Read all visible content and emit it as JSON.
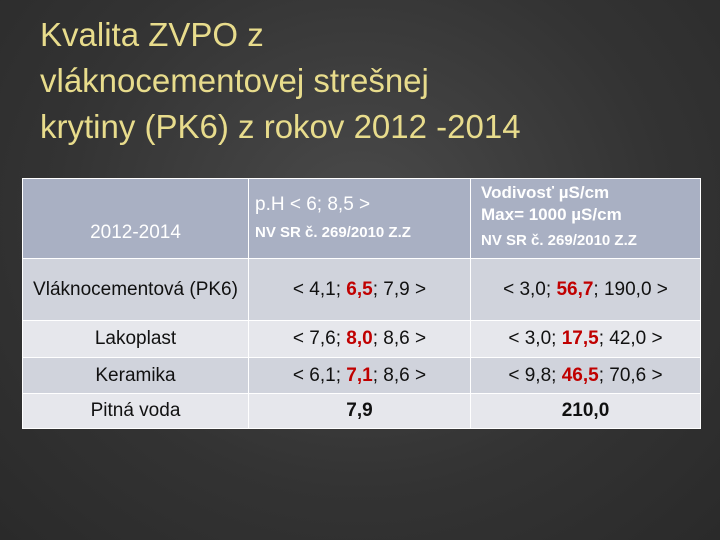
{
  "header": {
    "title": [
      "Kvalita ZVPO z",
      "vláknocementovej strešnej",
      "krytiny (PK6) z rokov 2012 -2014"
    ]
  },
  "table": {
    "header": {
      "period": "2012-2014",
      "ph": {
        "label": "p.H  < 6; 8,5 >",
        "norm": "NV SR č. 269/2010 Z.Z"
      },
      "conductivity": {
        "label": "Vodivosť µS/cm",
        "max": "Max= 1000 µS/cm",
        "norm": "NV SR č. 269/2010 Z.Z"
      }
    },
    "rows": [
      {
        "name": "Vláknocementová (PK6)",
        "ph": [
          "< 4,1; ",
          "6,5",
          "; 7,9 >"
        ],
        "conductivity": [
          "< 3,0; ",
          "56,7",
          "; 190,0 >"
        ]
      },
      {
        "name": "Lakoplast",
        "ph": [
          "< 7,6; ",
          "8,0",
          "; 8,6 >"
        ],
        "conductivity": [
          "< 3,0; ",
          "17,5",
          "; 42,0 >"
        ]
      },
      {
        "name": "Keramika",
        "ph": [
          "< 6,1; ",
          "7,1",
          "; 8,6 >"
        ],
        "conductivity": [
          "< 9,8; ",
          "46,5",
          "; 70,6 >"
        ]
      },
      {
        "name": "Pitná voda",
        "ph": [
          "7,9"
        ],
        "conductivity": [
          "210,0"
        ]
      }
    ]
  }
}
